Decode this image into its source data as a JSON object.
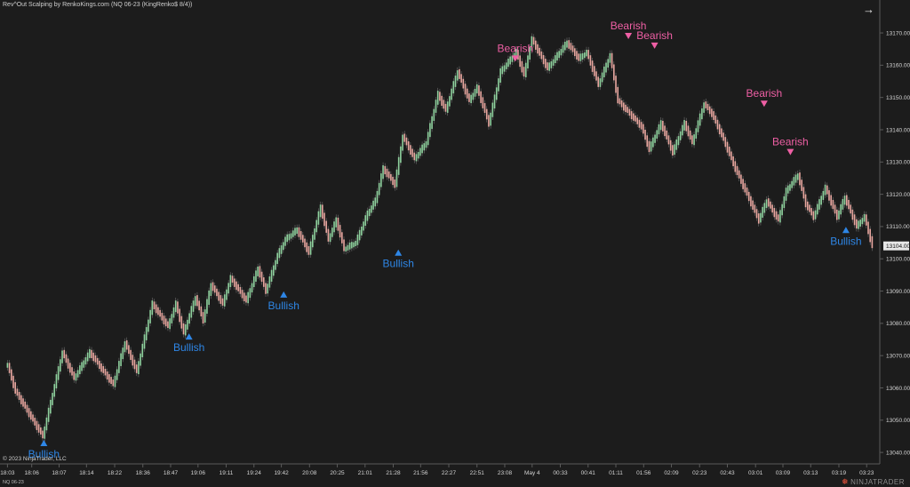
{
  "window": {
    "title": "Rev^Out Scalping by RenkoKings.com (NQ 06-23 (KingRenko$ 8/4))",
    "copyright": "© 2023 NinjaTrader, LLC",
    "instrument_short": "NQ 06-23",
    "brand": "NINJATRADER",
    "expand_icon": "arrow-right-icon"
  },
  "colors": {
    "background": "#1c1c1c",
    "up_bar": "#8fd19e",
    "down_bar": "#e8a7a0",
    "bullish": "#2e86e6",
    "bearish": "#ee5fa4",
    "axis": "#5a5a5a",
    "price_tag_bg": "#e6e6e6"
  },
  "chart_data": {
    "type": "line",
    "title": "Rev^Out Scalping by RenkoKings.com (NQ 06-23 (KingRenko$ 8/4))",
    "ylim": [
      13037,
      13178
    ],
    "y_ticks": [
      13040,
      13050,
      13060,
      13070,
      13080,
      13090,
      13100,
      13110,
      13120,
      13130,
      13140,
      13150,
      13160,
      13170
    ],
    "y_tick_labels": [
      "13040.00",
      "13050.00",
      "13060.00",
      "13070.00",
      "13080.00",
      "13090.00",
      "13100.00",
      "13110.00",
      "13120.00",
      "13130.00",
      "13140.00",
      "13150.00",
      "13160.00",
      "13170.00"
    ],
    "x_tick_labels": [
      "18:03",
      "18:06",
      "18:07",
      "18:14",
      "18:22",
      "18:36",
      "18:47",
      "19:06",
      "19:11",
      "19:24",
      "19:42",
      "20:08",
      "20:25",
      "21:01",
      "21:28",
      "21:56",
      "22:27",
      "22:51",
      "23:08",
      "May 4",
      "00:33",
      "00:41",
      "01:11",
      "01:56",
      "02:09",
      "02:23",
      "02:43",
      "03:01",
      "03:09",
      "03:13",
      "03:19",
      "03:23"
    ],
    "x_index": [
      0,
      6.2,
      13.2,
      20.2,
      27.4,
      34.6,
      41.7,
      48.7,
      55.9,
      63.0,
      70.0,
      77.2,
      84.3,
      91.4,
      98.6,
      105.6,
      112.8,
      120.0,
      127.1,
      134.1,
      141.3,
      148.4,
      155.5,
      162.6,
      169.7,
      176.9,
      184.0,
      191.2,
      198.2,
      205.3,
      212.5,
      219.6
    ],
    "x_range": [
      -1,
      222.5
    ],
    "last_price": "13104.00",
    "series": [
      {
        "x": [
          0,
          2,
          9,
          14,
          17,
          21,
          27,
          30,
          33,
          37,
          41,
          43,
          45,
          48,
          50,
          52,
          55,
          57,
          61,
          64,
          66,
          69,
          71,
          74,
          77,
          80,
          82,
          84,
          86,
          89,
          92,
          94,
          96,
          99,
          101,
          104,
          107,
          110,
          112,
          115,
          118,
          120,
          123,
          126,
          130,
          132,
          134,
          138,
          143,
          146,
          148,
          151,
          154,
          156,
          159,
          162,
          164,
          167,
          170,
          173,
          175,
          178,
          180,
          183,
          186,
          189,
          192,
          194,
          197,
          199,
          202,
          204,
          206,
          209,
          212,
          214,
          217,
          219,
          221
        ],
        "y": [
          13067,
          13059,
          13045,
          13071,
          13063,
          13071,
          13061,
          13074,
          13065,
          13086,
          13079,
          13086,
          13077,
          13088,
          13081,
          13092,
          13086,
          13094,
          13087,
          13097,
          13090,
          13101,
          13106,
          13109,
          13102,
          13116,
          13106,
          13112,
          13103,
          13105,
          13114,
          13118,
          13128,
          13123,
          13138,
          13131,
          13136,
          13151,
          13146,
          13158,
          13149,
          13153,
          13142,
          13158,
          13164,
          13157,
          13168,
          13159,
          13167,
          13162,
          13164,
          13154,
          13163,
          13149,
          13145,
          13141,
          13134,
          13142,
          13133,
          13142,
          13136,
          13148,
          13145,
          13137,
          13128,
          13120,
          13112,
          13118,
          13112,
          13121,
          13126,
          13117,
          13113,
          13122,
          13113,
          13119,
          13110,
          13113,
          13104
        ]
      }
    ],
    "signals": [
      {
        "type": "bullish",
        "label": "Bullish",
        "x": 9.3,
        "y": 13045
      },
      {
        "type": "bullish",
        "label": "Bullish",
        "x": 46.4,
        "y": 13078
      },
      {
        "type": "bullish",
        "label": "Bullish",
        "x": 70.6,
        "y": 13091
      },
      {
        "type": "bullish",
        "label": "Bullish",
        "x": 99.9,
        "y": 13104
      },
      {
        "type": "bearish",
        "label": "Bearish",
        "x": 129.8,
        "y": 13160
      },
      {
        "type": "bearish",
        "label": "Bearish",
        "x": 158.7,
        "y": 13167
      },
      {
        "type": "bearish",
        "label": "Bearish",
        "x": 165.4,
        "y": 13164
      },
      {
        "type": "bearish",
        "label": "Bearish",
        "x": 193.4,
        "y": 13146
      },
      {
        "type": "bearish",
        "label": "Bearish",
        "x": 200.1,
        "y": 13131
      },
      {
        "type": "bullish",
        "label": "Bullish",
        "x": 214.3,
        "y": 13111
      }
    ]
  }
}
